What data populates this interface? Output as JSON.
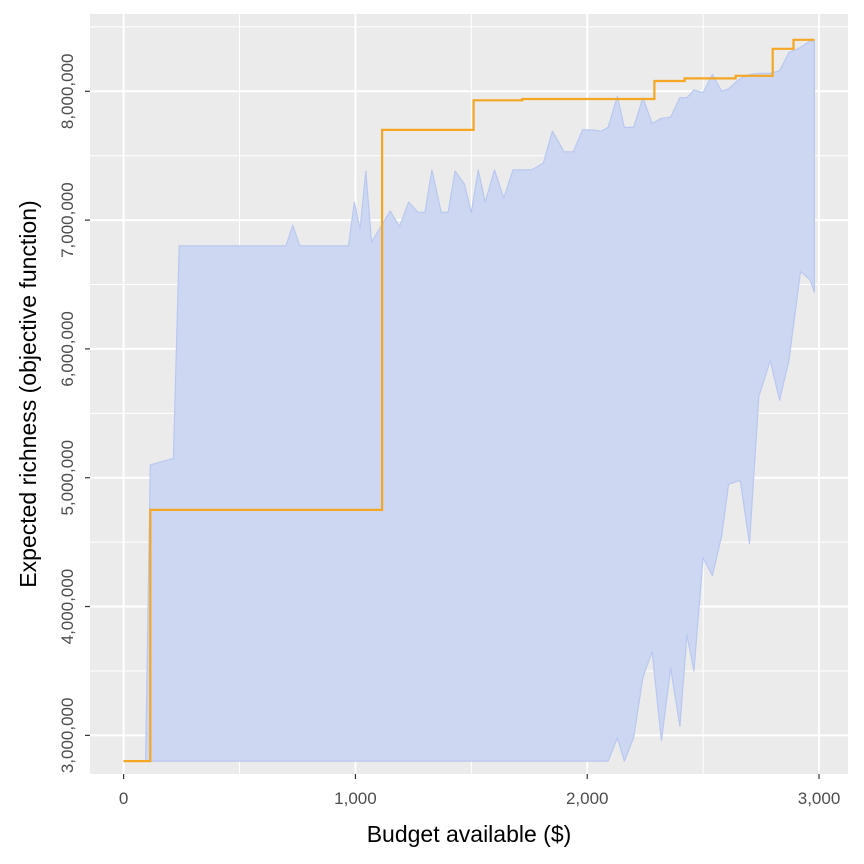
{
  "chart_data": {
    "type": "line",
    "title": "",
    "xlabel": "Budget available ($)",
    "ylabel": "Expected richness (objective function)",
    "xlim": [
      -145,
      3125
    ],
    "ylim": [
      2700000,
      8600000
    ],
    "x_ticks": [
      0,
      1000,
      2000,
      3000
    ],
    "x_tick_labels": [
      "0",
      "1,000",
      "2,000",
      "3,000"
    ],
    "y_ticks": [
      3000000,
      4000000,
      5000000,
      6000000,
      7000000,
      8000000
    ],
    "y_tick_labels": [
      "3,000,000",
      "4,000,000",
      "5,000,000",
      "6,000,000",
      "7,000,000",
      "8,000,000"
    ],
    "grid": true,
    "legend": "none",
    "colors": {
      "panel": "#ebebeb",
      "grid": "#ffffff",
      "ribbon_fill": "#cdd7f2",
      "ribbon_edge": "#b9c8f0",
      "line": "#f5a623"
    },
    "ribbon": {
      "x": [
        0,
        95,
        115,
        215,
        240,
        700,
        730,
        760,
        970,
        995,
        1020,
        1045,
        1070,
        1100,
        1150,
        1190,
        1230,
        1270,
        1300,
        1330,
        1370,
        1400,
        1430,
        1470,
        1500,
        1530,
        1560,
        1600,
        1640,
        1680,
        1720,
        1760,
        1810,
        1850,
        1900,
        1940,
        1980,
        2020,
        2060,
        2090,
        2130,
        2160,
        2200,
        2240,
        2280,
        2320,
        2360,
        2400,
        2430,
        2460,
        2500,
        2540,
        2580,
        2610,
        2660,
        2700,
        2740,
        2790,
        2830,
        2870,
        2920,
        2960,
        2980
      ],
      "upper": [
        2800000,
        2800000,
        5100000,
        5150000,
        6800000,
        6800000,
        6960000,
        6800000,
        6800000,
        7140000,
        6930000,
        7380000,
        6830000,
        6920000,
        7070000,
        6950000,
        7140000,
        7060000,
        7060000,
        7390000,
        7060000,
        7060000,
        7380000,
        7280000,
        7060000,
        7390000,
        7140000,
        7390000,
        7170000,
        7390000,
        7390000,
        7390000,
        7440000,
        7690000,
        7530000,
        7530000,
        7700000,
        7700000,
        7690000,
        7720000,
        7960000,
        7720000,
        7720000,
        7950000,
        7750000,
        7790000,
        7800000,
        7950000,
        7950000,
        8010000,
        7990000,
        8130000,
        8000000,
        8020000,
        8100000,
        8130000,
        8140000,
        8140000,
        8160000,
        8300000,
        8340000,
        8390000,
        8390000
      ],
      "lower": [
        2800000,
        2800000,
        2800000,
        2800000,
        2800000,
        2800000,
        2800000,
        2800000,
        2800000,
        2800000,
        2800000,
        2800000,
        2800000,
        2800000,
        2800000,
        2800000,
        2800000,
        2800000,
        2800000,
        2800000,
        2800000,
        2800000,
        2800000,
        2800000,
        2800000,
        2800000,
        2800000,
        2800000,
        2800000,
        2800000,
        2800000,
        2800000,
        2800000,
        2800000,
        2800000,
        2800000,
        2800000,
        2800000,
        2800000,
        2800000,
        2980000,
        2800000,
        2980000,
        3450000,
        3650000,
        2960000,
        3520000,
        3070000,
        3780000,
        3500000,
        4380000,
        4240000,
        4550000,
        4950000,
        4980000,
        4490000,
        5630000,
        5910000,
        5600000,
        5910000,
        6600000,
        6540000,
        6440000
      ]
    },
    "series": [
      {
        "x": [
          0,
          115,
          115,
          1115,
          1115,
          1510,
          1510,
          1720,
          1720,
          2290,
          2290,
          2420,
          2420,
          2640,
          2640,
          2800,
          2800,
          2890,
          2890,
          2980
        ],
        "values": [
          2800000,
          2800000,
          4750000,
          4750000,
          7700000,
          7700000,
          7930000,
          7930000,
          7940000,
          7940000,
          8080000,
          8080000,
          8100000,
          8100000,
          8120000,
          8120000,
          8330000,
          8330000,
          8400000,
          8400000
        ]
      }
    ]
  }
}
